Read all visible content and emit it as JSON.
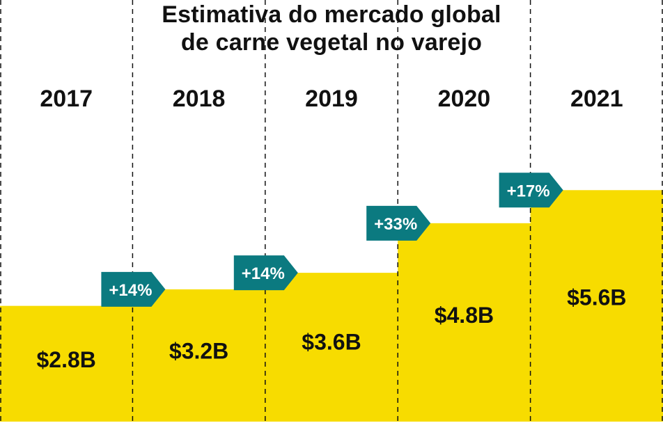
{
  "chart_data": {
    "type": "bar",
    "title_lines": [
      "Estimativa do mercado global",
      "de carne vegetal no varejo"
    ],
    "categories": [
      "2017",
      "2018",
      "2019",
      "2020",
      "2021"
    ],
    "values": [
      2.8,
      3.2,
      3.6,
      4.8,
      5.6
    ],
    "value_labels": [
      "$2.8B",
      "$3.2B",
      "$3.6B",
      "$4.8B",
      "$5.6B"
    ],
    "growth_labels": [
      "+14%",
      "+14%",
      "+33%",
      "+17%"
    ],
    "ylim": [
      0,
      10.2
    ],
    "grid": false,
    "colors": {
      "bar": "#f7dc00",
      "badge": "#0b7a80",
      "badge_text": "#ffffff",
      "text": "#111111",
      "divider": "#111111"
    }
  }
}
